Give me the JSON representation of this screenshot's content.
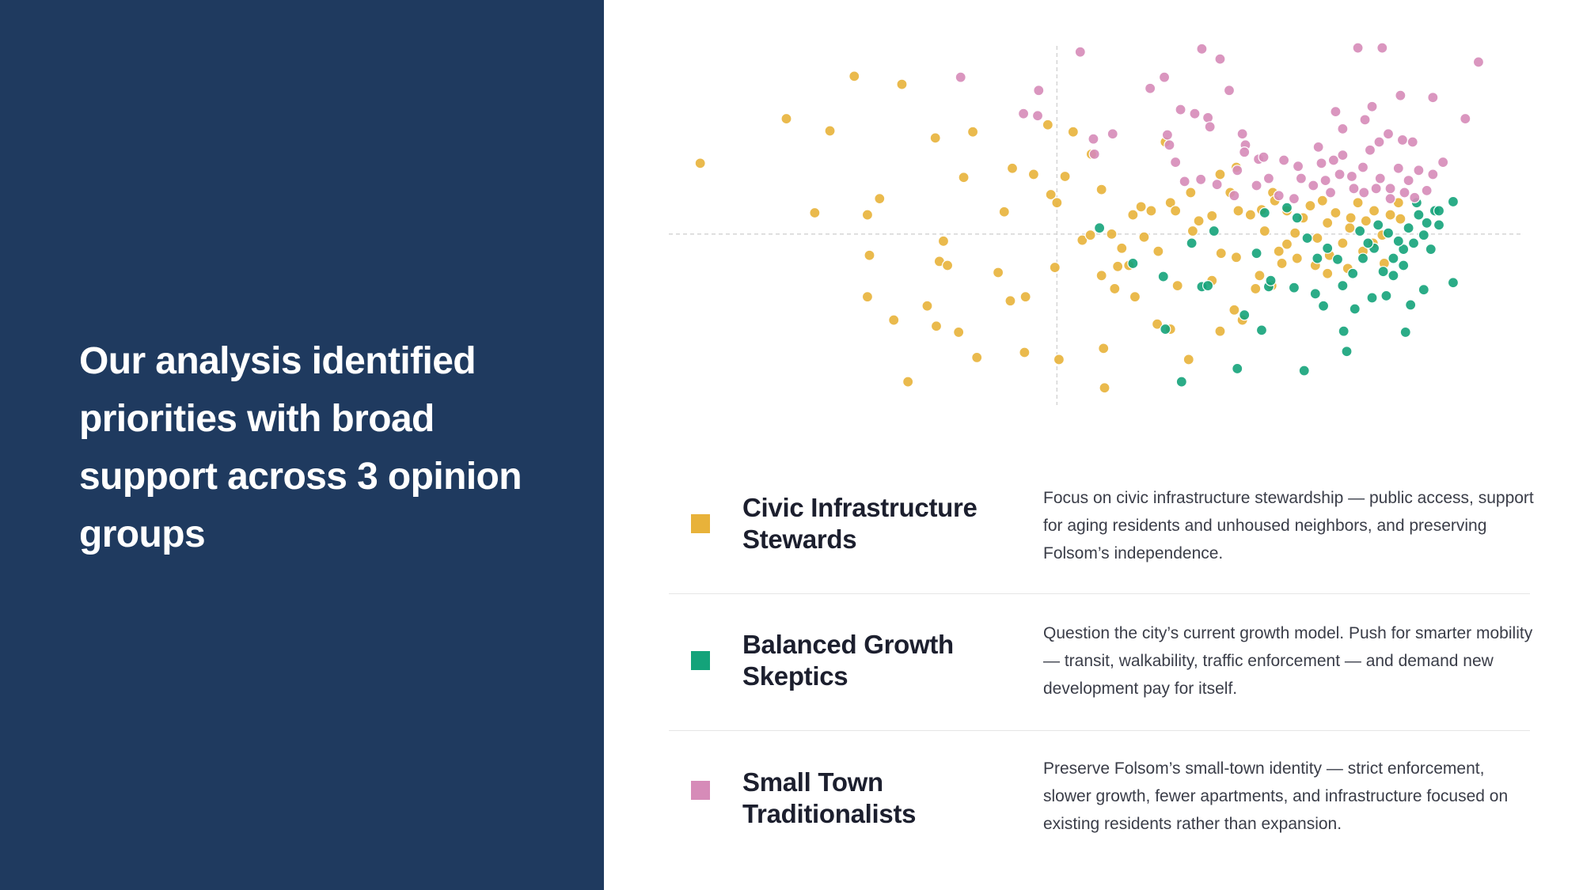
{
  "chart_data": {
    "type": "scatter",
    "title": "Our analysis identified priorities with broad support across 3 opinion groups",
    "xlim": [
      -383,
      459
    ],
    "ylim": [
      -169,
      186
    ],
    "series": [
      {
        "name": "Civic Infrastructure Stewards",
        "color": "#e8b23a",
        "description": "Focus on civic infrastructure stewardship — public access, support for aging residents and unhoused neighbors, and preserving Folsom’s independence.",
        "x": [
          -352,
          -267,
          -224,
          -200,
          -153,
          -239,
          -187,
          -175,
          -120,
          -83,
          -92,
          -44,
          -23,
          -9,
          16,
          34,
          8,
          -6,
          0,
          -52,
          -112,
          -185,
          -116,
          -108,
          -58,
          -31,
          -46,
          -187,
          -128,
          -161,
          -119,
          -97,
          -79,
          -32,
          2,
          -147,
          47,
          46,
          -2,
          25,
          33,
          44,
          54,
          64,
          75,
          86,
          83,
          93,
          112,
          107,
          117,
          132,
          134,
          140,
          153,
          161,
          171,
          177,
          179,
          191,
          202,
          205,
          213,
          219,
          227,
          235,
          243,
          250,
          257,
          267,
          275,
          282,
          289,
          297,
          305,
          313,
          321,
          329,
          337,
          44,
          57,
          77,
          99,
          112,
          130,
          161,
          175,
          183,
          196,
          200,
          212,
          119,
          162,
          177,
          153,
          100,
          60,
          71,
          222,
          237,
          255,
          267,
          269,
          287,
          302,
          312,
          323,
          339,
          215,
          227,
          262,
          290
        ],
        "values": [
          70,
          114,
          102,
          156,
          148,
          21,
          19,
          35,
          95,
          101,
          56,
          65,
          59,
          108,
          101,
          79,
          57,
          39,
          31,
          22,
          -7,
          -21,
          -27,
          -31,
          -38,
          -62,
          -66,
          -62,
          -71,
          -85,
          -91,
          -97,
          -122,
          -117,
          -124,
          -146,
          -152,
          -113,
          -33,
          -6,
          -1,
          44,
          0,
          -14,
          19,
          -3,
          27,
          23,
          31,
          91,
          23,
          41,
          3,
          13,
          18,
          59,
          41,
          66,
          23,
          19,
          24,
          3,
          41,
          -17,
          -10,
          1,
          16,
          28,
          -4,
          11,
          21,
          -9,
          6,
          31,
          13,
          23,
          -1,
          19,
          31,
          -41,
          -54,
          -62,
          -89,
          -94,
          -124,
          -96,
          -75,
          -85,
          -54,
          -41,
          -51,
          -51,
          -19,
          -23,
          -46,
          -17,
          -32,
          -31,
          -29,
          -24,
          -31,
          -39,
          -21,
          -34,
          -17,
          -9,
          -29,
          15,
          33,
          23,
          33,
          16
        ]
      },
      {
        "name": "Balanced Growth Skeptics",
        "color": "#14a37a",
        "description": "Question the city’s current growth model. Push for smarter mobility — transit, walkability, traffic enforcement — and demand new development pay for itself.",
        "x": [
          123,
          178,
          244,
          286,
          283,
          344,
          391,
          391,
          362,
          349,
          325,
          311,
          294,
          263,
          255,
          234,
          202,
          185,
          143,
          149,
          105,
          75,
          133,
          155,
          209,
          211,
          197,
          107,
          257,
          267,
          277,
          292,
          302,
          313,
          322,
          332,
          342,
          352,
          362,
          369,
          377,
          373,
          357,
          347,
          337,
          327,
          317,
          307,
          299,
          365,
          355,
          377,
          342,
          332,
          247,
          237,
          227,
          205,
          42,
          282
        ],
        "values": [
          -146,
          -133,
          -135,
          -116,
          -96,
          -97,
          -48,
          32,
          -55,
          -70,
          -61,
          -63,
          -74,
          -71,
          -59,
          -53,
          -95,
          -80,
          -52,
          -51,
          -42,
          -29,
          -9,
          3,
          -52,
          -46,
          -19,
          -94,
          -24,
          -14,
          -25,
          -39,
          -24,
          -14,
          -37,
          -24,
          -15,
          -9,
          -1,
          -15,
          9,
          23,
          19,
          6,
          -7,
          1,
          9,
          -9,
          3,
          11,
          31,
          23,
          -31,
          -41,
          -4,
          16,
          26,
          21,
          6,
          -51
        ]
      },
      {
        "name": "Small Town Traditionalists",
        "color": "#d68bb8",
        "description": "Preserve Folsom’s small-town identity — strict enforcement, slower growth, fewer apartments, and infrastructure focused on existing residents rather than expansion.",
        "x": [
          23,
          -95,
          -18,
          -33,
          -19,
          36,
          55,
          37,
          143,
          161,
          106,
          92,
          170,
          122,
          136,
          149,
          151,
          109,
          111,
          117,
          126,
          142,
          158,
          178,
          183,
          186,
          199,
          204,
          209,
          224,
          238,
          241,
          253,
          258,
          275,
          282,
          261,
          273,
          282,
          291,
          302,
          309,
          311,
          318,
          327,
          339,
          341,
          351,
          371,
          381,
          371,
          403,
          416,
          297,
          321,
          319,
          329,
          337,
          347,
          357,
          365,
          353,
          343,
          329,
          315,
          303,
          293,
          270,
          279,
          265,
          175,
          197,
          219,
          234,
          185,
          304
        ],
        "values": [
          180,
          155,
          142,
          119,
          117,
          94,
          99,
          79,
          183,
          173,
          155,
          144,
          142,
          123,
          119,
          115,
          106,
          98,
          88,
          71,
          52,
          54,
          49,
          63,
          99,
          88,
          74,
          76,
          55,
          73,
          67,
          55,
          48,
          86,
          121,
          104,
          70,
          73,
          78,
          57,
          66,
          83,
          126,
          91,
          99,
          137,
          93,
          91,
          135,
          71,
          59,
          114,
          170,
          184,
          184,
          55,
          45,
          65,
          53,
          63,
          43,
          36,
          41,
          35,
          45,
          41,
          45,
          41,
          59,
          53,
          38,
          48,
          38,
          35,
          81,
          113
        ]
      }
    ]
  }
}
